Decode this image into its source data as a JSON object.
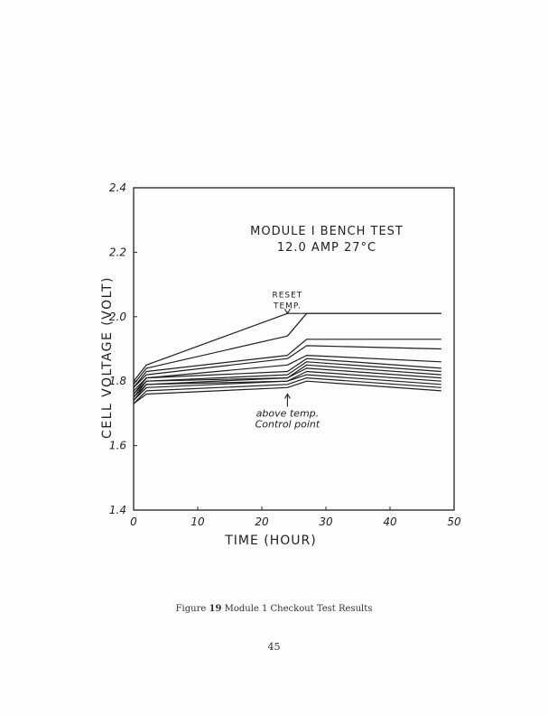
{
  "figure_caption": {
    "prefix": "Figure",
    "number": "19",
    "text": "Module 1 Checkout Test Results"
  },
  "page_number": "45",
  "chart_data": {
    "type": "line",
    "title_lines": [
      "MODULE I BENCH TEST",
      "12.0 AMP   27°C"
    ],
    "xlabel": "TIME  (HOUR)",
    "ylabel": "CELL VOLTAGE (VOLT)",
    "xlim": [
      0,
      50
    ],
    "ylim": [
      1.4,
      2.4
    ],
    "x_ticks": [
      {
        "value": 0,
        "label": "0"
      },
      {
        "value": 10,
        "label": "10"
      },
      {
        "value": 20,
        "label": "20"
      },
      {
        "value": 30,
        "label": "30"
      },
      {
        "value": 40,
        "label": "40"
      },
      {
        "value": 50,
        "label": "50"
      }
    ],
    "y_ticks": [
      {
        "value": 1.4,
        "label": "1.4"
      },
      {
        "value": 1.6,
        "label": "1.6"
      },
      {
        "value": 1.8,
        "label": "1.8"
      },
      {
        "value": 2.0,
        "label": "2.0"
      },
      {
        "value": 2.2,
        "label": "2.2"
      },
      {
        "value": 2.4,
        "label": "2.4"
      }
    ],
    "grid": false,
    "annotations": [
      {
        "lines": [
          "RESET",
          "TEMP."
        ],
        "x": 24,
        "y": 2.06,
        "arrow": "down",
        "arrow_to": [
          24,
          2.01
        ]
      },
      {
        "lines": [
          "above temp.",
          "Control point"
        ],
        "x": 24,
        "y": 1.69,
        "arrow": "up",
        "arrow_to": [
          24,
          1.76
        ]
      }
    ],
    "series": [
      {
        "x": [
          0,
          2,
          24,
          27,
          48
        ],
        "y": [
          1.8,
          1.85,
          2.01,
          2.01,
          2.01
        ]
      },
      {
        "x": [
          0,
          2,
          24,
          27,
          48
        ],
        "y": [
          1.79,
          1.84,
          1.94,
          2.01,
          2.01
        ]
      },
      {
        "x": [
          0,
          2,
          24,
          27,
          48
        ],
        "y": [
          1.78,
          1.83,
          1.88,
          1.93,
          1.93
        ]
      },
      {
        "x": [
          0,
          2,
          24,
          27,
          48
        ],
        "y": [
          1.78,
          1.82,
          1.87,
          1.91,
          1.9
        ]
      },
      {
        "x": [
          0,
          2,
          24,
          27,
          48
        ],
        "y": [
          1.77,
          1.81,
          1.85,
          1.88,
          1.86
        ]
      },
      {
        "x": [
          0,
          2,
          24,
          27,
          48
        ],
        "y": [
          1.76,
          1.81,
          1.83,
          1.87,
          1.84
        ]
      },
      {
        "x": [
          0,
          2,
          24,
          27,
          48
        ],
        "y": [
          1.76,
          1.8,
          1.82,
          1.86,
          1.83
        ]
      },
      {
        "x": [
          0,
          2,
          24,
          27,
          48
        ],
        "y": [
          1.75,
          1.8,
          1.81,
          1.85,
          1.82
        ]
      },
      {
        "x": [
          0,
          2,
          24,
          27,
          48
        ],
        "y": [
          1.75,
          1.79,
          1.81,
          1.84,
          1.81
        ]
      },
      {
        "x": [
          0,
          2,
          24,
          27,
          48
        ],
        "y": [
          1.74,
          1.79,
          1.8,
          1.83,
          1.8
        ]
      },
      {
        "x": [
          0,
          2,
          24,
          27,
          48
        ],
        "y": [
          1.74,
          1.78,
          1.8,
          1.82,
          1.79
        ]
      },
      {
        "x": [
          0,
          2,
          24,
          27,
          48
        ],
        "y": [
          1.73,
          1.77,
          1.79,
          1.81,
          1.78
        ]
      },
      {
        "x": [
          0,
          2,
          24,
          27,
          48
        ],
        "y": [
          1.73,
          1.76,
          1.78,
          1.8,
          1.77
        ]
      }
    ]
  }
}
